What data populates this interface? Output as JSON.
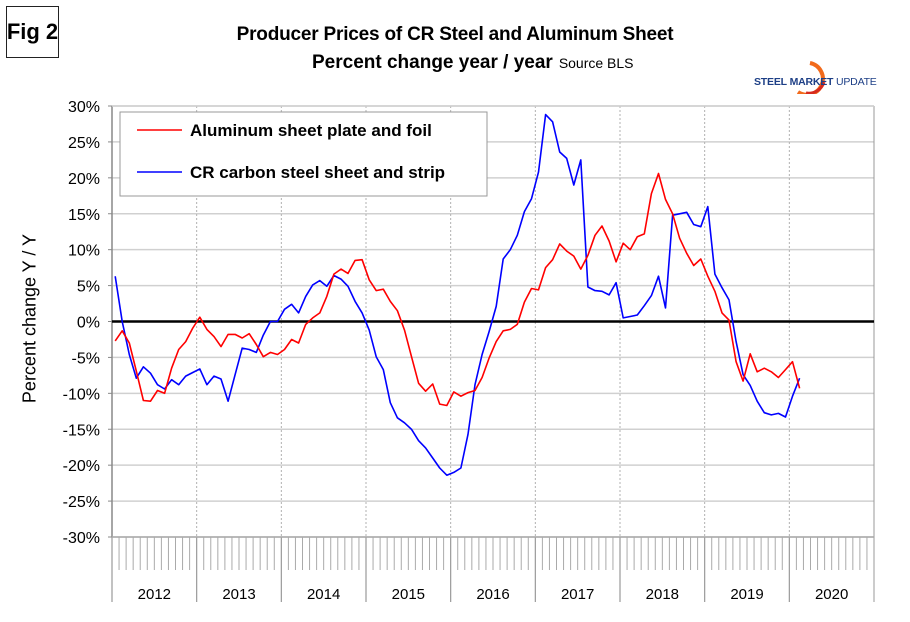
{
  "figure_label": "Fig 2",
  "logo_text": [
    "STEEL",
    "MARKET",
    "UPDATE"
  ],
  "colors": {
    "aluminum": "#ff0000",
    "steel": "#0000ff",
    "grid": "#cccccc",
    "zero": "#000000"
  },
  "chart_data": {
    "type": "line",
    "title": "Producer Prices of CR Steel and Aluminum Sheet",
    "subtitle": "Percent change year / year",
    "source": "Source BLS",
    "ylabel": "Percent change Y / Y",
    "xlabel": "",
    "ylim": [
      -30,
      30
    ],
    "ytick_step": 5,
    "yticks": [
      "30%",
      "25%",
      "20%",
      "15%",
      "10%",
      "5%",
      "0%",
      "-5%",
      "-10%",
      "-15%",
      "-20%",
      "-25%",
      "-30%"
    ],
    "x_start": "2012-01",
    "x_frequency": "monthly",
    "years": [
      "2012",
      "2013",
      "2014",
      "2015",
      "2016",
      "2017",
      "2018",
      "2019",
      "2020"
    ],
    "grid": true,
    "legend_position": "top-left",
    "series": [
      {
        "name": "Aluminum sheet plate and foil",
        "color": "#ff0000",
        "values": [
          -2.7,
          -1.3,
          -3.0,
          -6.9,
          -11.0,
          -11.1,
          -9.6,
          -10.0,
          -6.5,
          -3.9,
          -2.8,
          -0.9,
          0.6,
          -1.1,
          -2.1,
          -3.5,
          -1.8,
          -1.8,
          -2.3,
          -1.7,
          -3.2,
          -4.9,
          -4.3,
          -4.6,
          -3.9,
          -2.5,
          -3.0,
          -0.4,
          0.5,
          1.2,
          3.5,
          6.6,
          7.3,
          6.7,
          8.5,
          8.6,
          5.8,
          4.3,
          4.5,
          2.8,
          1.5,
          -1.2,
          -4.9,
          -8.6,
          -9.7,
          -8.7,
          -11.5,
          -11.7,
          -9.8,
          -10.4,
          -9.9,
          -9.6,
          -7.8,
          -5.1,
          -2.8,
          -1.3,
          -1.1,
          -0.4,
          2.7,
          4.6,
          4.4,
          7.5,
          8.6,
          10.8,
          9.8,
          9.1,
          7.3,
          9.2,
          12.0,
          13.3,
          11.2,
          8.3,
          10.9,
          10.0,
          11.8,
          12.2,
          17.8,
          20.6,
          17.0,
          15.0,
          11.6,
          9.5,
          7.8,
          8.7,
          6.3,
          4.2,
          1.2,
          0.2,
          -5.6,
          -8.3,
          -4.5,
          -7.0,
          -6.5,
          -7.0,
          -7.8,
          -6.7,
          -5.6,
          -9.3
        ]
      },
      {
        "name": "CR carbon steel sheet and strip",
        "color": "#0000ff",
        "values": [
          6.3,
          0.0,
          -4.6,
          -7.9,
          -6.3,
          -7.2,
          -8.8,
          -9.4,
          -8.1,
          -8.8,
          -7.6,
          -7.1,
          -6.6,
          -8.8,
          -7.6,
          -8.0,
          -11.1,
          -7.4,
          -3.7,
          -3.9,
          -4.3,
          -1.9,
          0.0,
          0.0,
          1.7,
          2.4,
          1.2,
          3.5,
          5.1,
          5.7,
          4.9,
          6.4,
          5.9,
          4.9,
          2.8,
          1.2,
          -1.2,
          -4.9,
          -6.7,
          -11.3,
          -13.4,
          -14.1,
          -15.0,
          -16.6,
          -17.6,
          -19.0,
          -20.4,
          -21.4,
          -21.0,
          -20.4,
          -15.7,
          -8.8,
          -4.6,
          -1.4,
          2.1,
          8.7,
          10.0,
          12.0,
          15.3,
          17.1,
          20.8,
          28.8,
          27.8,
          23.6,
          22.7,
          19.0,
          22.5,
          4.8,
          4.3,
          4.2,
          3.7,
          5.4,
          0.5,
          0.7,
          0.9,
          2.2,
          3.6,
          6.3,
          1.9,
          14.8,
          15.0,
          15.2,
          13.5,
          13.2,
          16.0,
          6.6,
          4.7,
          3.0,
          -2.8,
          -7.4,
          -8.9,
          -11.1,
          -12.7,
          -13.0,
          -12.8,
          -13.3,
          -10.4,
          -7.9
        ]
      }
    ]
  }
}
